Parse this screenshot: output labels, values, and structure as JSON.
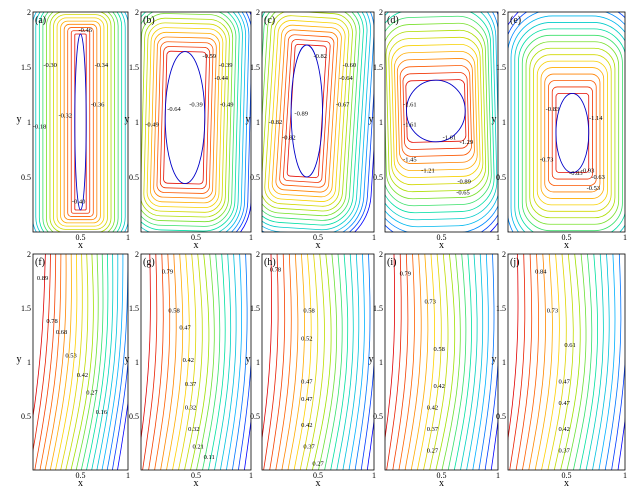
{
  "figure": {
    "type": "contour-plot-grid",
    "x_label": "x",
    "y_label": "y",
    "x_ticks": [
      "0.5",
      "1"
    ],
    "y_ticks": [
      "0.5",
      "1",
      "1.5",
      "2"
    ],
    "colormap": [
      "#0000ff",
      "#00b0ff",
      "#00e0a0",
      "#a0e000",
      "#ffd000",
      "#ff6000",
      "#e00000"
    ]
  },
  "chart_data": [
    {
      "type": "contour",
      "panel": "(a)",
      "xlim": [
        0,
        1
      ],
      "ylim": [
        0,
        2
      ],
      "contour_labels": [
        "-0.46",
        "-0.30",
        "-0.34",
        "-0.18",
        "-0.32",
        "-0.36",
        "-0.40"
      ]
    },
    {
      "type": "contour",
      "panel": "(b)",
      "xlim": [
        0,
        1
      ],
      "ylim": [
        0,
        2
      ],
      "contour_labels": [
        "-0.59",
        "-0.39",
        "-0.44",
        "-0.64",
        "-0.49",
        "-0.49",
        "-0.39"
      ]
    },
    {
      "type": "contour",
      "panel": "(c)",
      "xlim": [
        0,
        1
      ],
      "ylim": [
        0,
        2
      ],
      "contour_labels": [
        "-0.82",
        "-0.60",
        "-0.64",
        "-0.82",
        "-0.89",
        "-0.67",
        "-0.82"
      ]
    },
    {
      "type": "contour",
      "panel": "(d)",
      "xlim": [
        0,
        1
      ],
      "ylim": [
        0,
        2
      ],
      "contour_labels": [
        "-1.61",
        "-1.61",
        "-1.61",
        "-1.29",
        "-1.45",
        "-1.21",
        "-0.89",
        "-0.65"
      ]
    },
    {
      "type": "contour",
      "panel": "(e)",
      "xlim": [
        0,
        1
      ],
      "ylim": [
        0,
        2
      ],
      "contour_labels": [
        "-0.83",
        "-1.14",
        "-0.73",
        "-0.93",
        "-0.83",
        "-0.63",
        "-0.53"
      ]
    },
    {
      "type": "contour",
      "panel": "(f)",
      "xlim": [
        0,
        1
      ],
      "ylim": [
        0,
        2
      ],
      "contour_labels": [
        "0.89",
        "0.78",
        "0.68",
        "0.53",
        "0.42",
        "0.27",
        "0.16"
      ]
    },
    {
      "type": "contour",
      "panel": "(g)",
      "xlim": [
        0,
        1
      ],
      "ylim": [
        0,
        2
      ],
      "contour_labels": [
        "0.79",
        "0.58",
        "0.47",
        "0.42",
        "0.37",
        "0.32",
        "0.32",
        "0.21",
        "0.11"
      ]
    },
    {
      "type": "contour",
      "panel": "(h)",
      "xlim": [
        0,
        1
      ],
      "ylim": [
        0,
        2
      ],
      "contour_labels": [
        "0.78",
        "0.58",
        "0.52",
        "0.47",
        "0.47",
        "0.42",
        "0.37",
        "0.27"
      ]
    },
    {
      "type": "contour",
      "panel": "(i)",
      "xlim": [
        0,
        1
      ],
      "ylim": [
        0,
        2
      ],
      "contour_labels": [
        "0.79",
        "0.73",
        "0.58",
        "0.42",
        "0.42",
        "0.37",
        "0.27"
      ]
    },
    {
      "type": "contour",
      "panel": "(j)",
      "xlim": [
        0,
        1
      ],
      "ylim": [
        0,
        2
      ],
      "contour_labels": [
        "0.84",
        "0.73",
        "0.61",
        "0.47",
        "0.47",
        "0.42",
        "0.37"
      ]
    }
  ]
}
